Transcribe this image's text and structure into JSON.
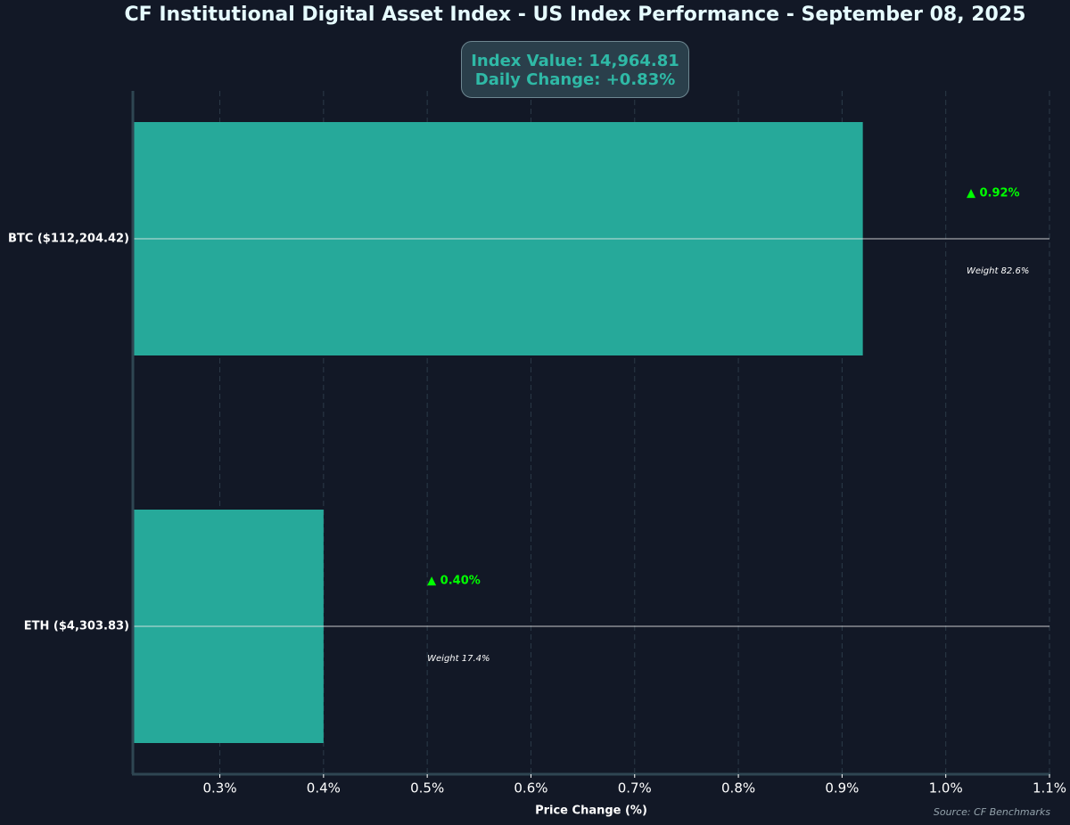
{
  "title": "CF Institutional Digital Asset Index - US Index Performance - September 08, 2025",
  "info_box": {
    "index_value": "Index Value: 14,964.81",
    "daily_change": "Daily Change: +0.83%"
  },
  "source": "Source: CF Benchmarks",
  "colors": {
    "background": "#121826",
    "bar": "#26a99a",
    "positive": "#00ff00",
    "title": "#e6fbff",
    "info_text": "#2fb9a6"
  },
  "chart_data": {
    "type": "bar",
    "orientation": "horizontal",
    "categories": [
      "BTC ($112,204.42)",
      "ETH ($4,303.83)"
    ],
    "values": [
      0.92,
      0.4
    ],
    "change_labels": [
      "▲ 0.92%",
      "▲ 0.40%"
    ],
    "weight_labels": [
      "Weight 82.6%",
      "Weight 17.4%"
    ],
    "xlabel": "Price Change (%)",
    "xlim": [
      0.217,
      1.1
    ],
    "xticks": [
      0.3,
      0.4,
      0.5,
      0.6,
      0.7,
      0.8,
      0.9,
      1.0,
      1.1
    ],
    "xtick_labels": [
      "0.3%",
      "0.4%",
      "0.5%",
      "0.6%",
      "0.7%",
      "0.8%",
      "0.9%",
      "1.0%",
      "1.1%"
    ],
    "grid": "vertical dashed",
    "reference_lines": "horizontal line at each category center"
  }
}
